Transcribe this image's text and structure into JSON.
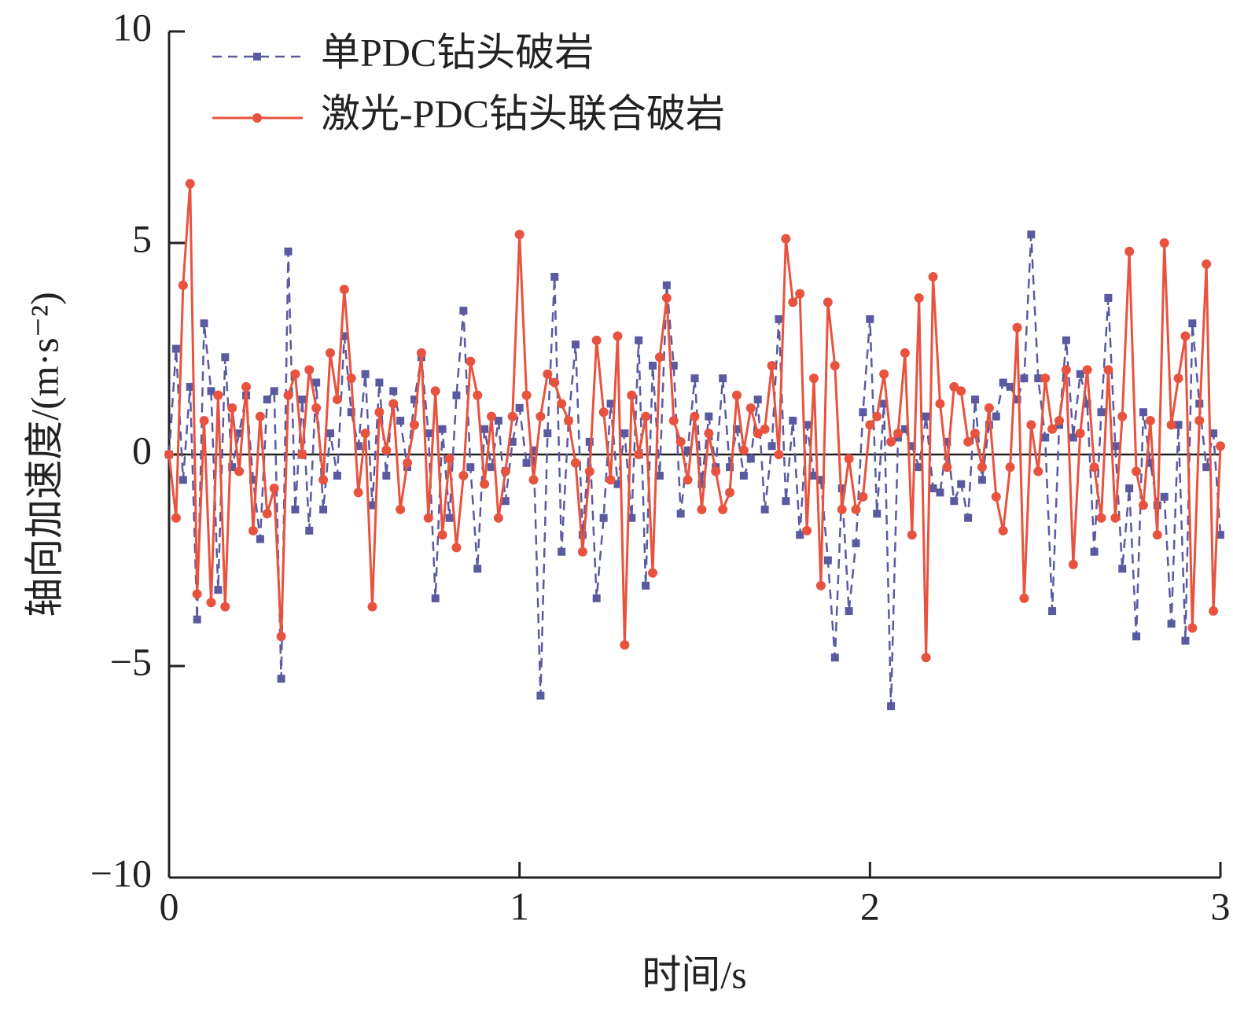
{
  "chart_data": {
    "type": "line",
    "xlabel": "时间/s",
    "ylabel": "轴向加速度/(m·s⁻²)",
    "x": [
      0,
      0.02,
      0.04,
      0.06,
      0.08,
      0.1,
      0.12,
      0.14,
      0.16,
      0.18,
      0.2,
      0.22,
      0.24,
      0.26,
      0.28,
      0.3,
      0.32,
      0.34,
      0.36,
      0.38,
      0.4,
      0.42,
      0.44,
      0.46,
      0.48,
      0.5,
      0.52,
      0.54,
      0.56,
      0.58,
      0.6,
      0.62,
      0.64,
      0.66,
      0.68,
      0.7,
      0.72,
      0.74,
      0.76,
      0.78,
      0.8,
      0.82,
      0.84,
      0.86,
      0.88,
      0.9,
      0.92,
      0.94,
      0.96,
      0.98,
      1,
      1.02,
      1.04,
      1.06,
      1.08,
      1.1,
      1.12,
      1.14,
      1.16,
      1.18,
      1.2,
      1.22,
      1.24,
      1.26,
      1.28,
      1.3,
      1.32,
      1.34,
      1.36,
      1.38,
      1.4,
      1.42,
      1.44,
      1.46,
      1.48,
      1.5,
      1.52,
      1.54,
      1.56,
      1.58,
      1.6,
      1.62,
      1.64,
      1.66,
      1.68,
      1.7,
      1.72,
      1.74,
      1.76,
      1.78,
      1.8,
      1.82,
      1.84,
      1.86,
      1.88,
      1.9,
      1.92,
      1.94,
      1.96,
      1.98,
      2,
      2.02,
      2.04,
      2.06,
      2.08,
      2.1,
      2.12,
      2.14,
      2.16,
      2.18,
      2.2,
      2.22,
      2.24,
      2.26,
      2.28,
      2.3,
      2.32,
      2.34,
      2.36,
      2.38,
      2.4,
      2.42,
      2.44,
      2.46,
      2.48,
      2.5,
      2.52,
      2.54,
      2.56,
      2.58,
      2.6,
      2.62,
      2.64,
      2.66,
      2.68,
      2.7,
      2.72,
      2.74,
      2.76,
      2.78,
      2.8,
      2.82,
      2.84,
      2.86,
      2.88,
      2.9,
      2.92,
      2.94,
      2.96,
      2.98,
      3
    ],
    "series": [
      {
        "name": "单PDC钻头破岩",
        "color": "#5a5aa0",
        "dash": true,
        "marker": "square",
        "values": [
          0,
          2.5,
          -0.6,
          1.6,
          -3.9,
          3.1,
          1.5,
          -3.2,
          2.3,
          -0.3,
          0.5,
          1.4,
          -0.6,
          -2.0,
          1.3,
          1.5,
          -5.3,
          4.8,
          -1.3,
          1.3,
          -1.8,
          1.7,
          -1.3,
          0.5,
          -0.5,
          2.8,
          1.0,
          0.2,
          1.9,
          -1.2,
          1.7,
          -0.5,
          1.5,
          0.8,
          -0.3,
          1.3,
          2.3,
          0.5,
          -3.4,
          0.6,
          -1.5,
          1.4,
          3.4,
          -0.3,
          -2.7,
          0.6,
          -0.3,
          0.8,
          -1.1,
          0.3,
          1.1,
          -0.2,
          0.1,
          -5.7,
          0.5,
          4.2,
          -2.3,
          0.8,
          2.6,
          -1.9,
          0.3,
          -3.4,
          -1.5,
          1.2,
          -0.7,
          0.5,
          -1.5,
          2.7,
          -3.1,
          2.1,
          -0.5,
          4.0,
          2.1,
          -1.4,
          0.1,
          1.8,
          -0.7,
          0.9,
          -0.3,
          1.8,
          -0.3,
          0.6,
          -0.5,
          -0.1,
          1.3,
          -1.3,
          0.2,
          3.2,
          -1.1,
          0.8,
          -1.9,
          0.7,
          -0.5,
          -0.6,
          -2.5,
          -4.8,
          -0.8,
          -3.7,
          -2.1,
          1.0,
          3.2,
          -1.4,
          1.2,
          -5.95,
          0.4,
          0.6,
          0.2,
          -0.3,
          0.9,
          -0.8,
          -0.9,
          0.3,
          -1.1,
          -0.7,
          -1.5,
          1.3,
          -0.6,
          0.7,
          0.9,
          1.7,
          1.6,
          1.3,
          1.8,
          5.2,
          1.8,
          0.4,
          -3.7,
          0.7,
          2.7,
          0.4,
          1.9,
          1.2,
          -2.3,
          1.0,
          3.7,
          0.2,
          -2.7,
          -0.8,
          -4.3,
          1.0,
          -0.2,
          -1.2,
          -1.0,
          -4.0,
          0.7,
          -4.4,
          3.1,
          1.2,
          -0.3,
          0.5,
          -1.9
        ]
      },
      {
        "name": "激光-PDC钻头联合破岩",
        "color": "#e8533f",
        "dash": false,
        "marker": "circle",
        "values": [
          0,
          -1.5,
          4.0,
          6.4,
          -3.3,
          0.8,
          -3.5,
          1.4,
          -3.6,
          1.1,
          -0.4,
          1.6,
          -1.8,
          0.9,
          -1.4,
          -0.8,
          -4.3,
          1.4,
          1.9,
          0,
          2.0,
          1.1,
          -0.6,
          2.4,
          1.3,
          3.9,
          1.8,
          -0.9,
          0.5,
          -3.6,
          1.0,
          0.1,
          1.2,
          -1.3,
          -0.2,
          0.7,
          2.4,
          -1.5,
          1.5,
          -1.9,
          -0.1,
          -2.2,
          -0.5,
          2.2,
          1.4,
          -0.7,
          0.9,
          -1.5,
          -0.4,
          0.9,
          5.2,
          1.4,
          -0.6,
          0.9,
          1.9,
          1.7,
          1.2,
          0.8,
          -0.2,
          -2.3,
          -0.4,
          2.7,
          1.0,
          -0.6,
          2.8,
          -4.5,
          1.4,
          0,
          0.9,
          -2.8,
          2.3,
          3.7,
          0.8,
          0.3,
          -0.6,
          0.9,
          -1.3,
          0.5,
          -0.4,
          -1.3,
          -0.9,
          1.4,
          0.1,
          1.1,
          0.5,
          0.6,
          2.1,
          0,
          5.1,
          3.6,
          3.8,
          -1.8,
          1.8,
          -3.1,
          3.6,
          2.1,
          -1.3,
          -0.1,
          -1.3,
          -1.0,
          0.7,
          0.9,
          1.9,
          0.3,
          0.5,
          2.4,
          -1.9,
          3.7,
          -4.8,
          4.2,
          1.2,
          -0.3,
          1.6,
          1.5,
          0.3,
          0.5,
          -0.3,
          1.1,
          -1.0,
          -1.8,
          -0.3,
          3.0,
          -3.4,
          0.7,
          -0.4,
          1.8,
          0.6,
          0.8,
          2.0,
          -2.6,
          0.5,
          2.0,
          -0.3,
          -1.5,
          2.0,
          -1.5,
          0.9,
          4.8,
          -0.4,
          -1.2,
          0.8,
          -1.9,
          5.0,
          0.7,
          1.8,
          2.8,
          -4.1,
          0.8,
          4.5,
          -3.7,
          0.2
        ]
      }
    ],
    "xlim": [
      0,
      3
    ],
    "xticks": [
      0,
      1,
      2,
      3
    ],
    "ylim": [
      -10,
      10
    ],
    "yticks": [
      {
        "value": -10,
        "label": "−10"
      },
      {
        "value": -5,
        "label": "−5"
      },
      0,
      5,
      10
    ],
    "legend": "upper left"
  }
}
